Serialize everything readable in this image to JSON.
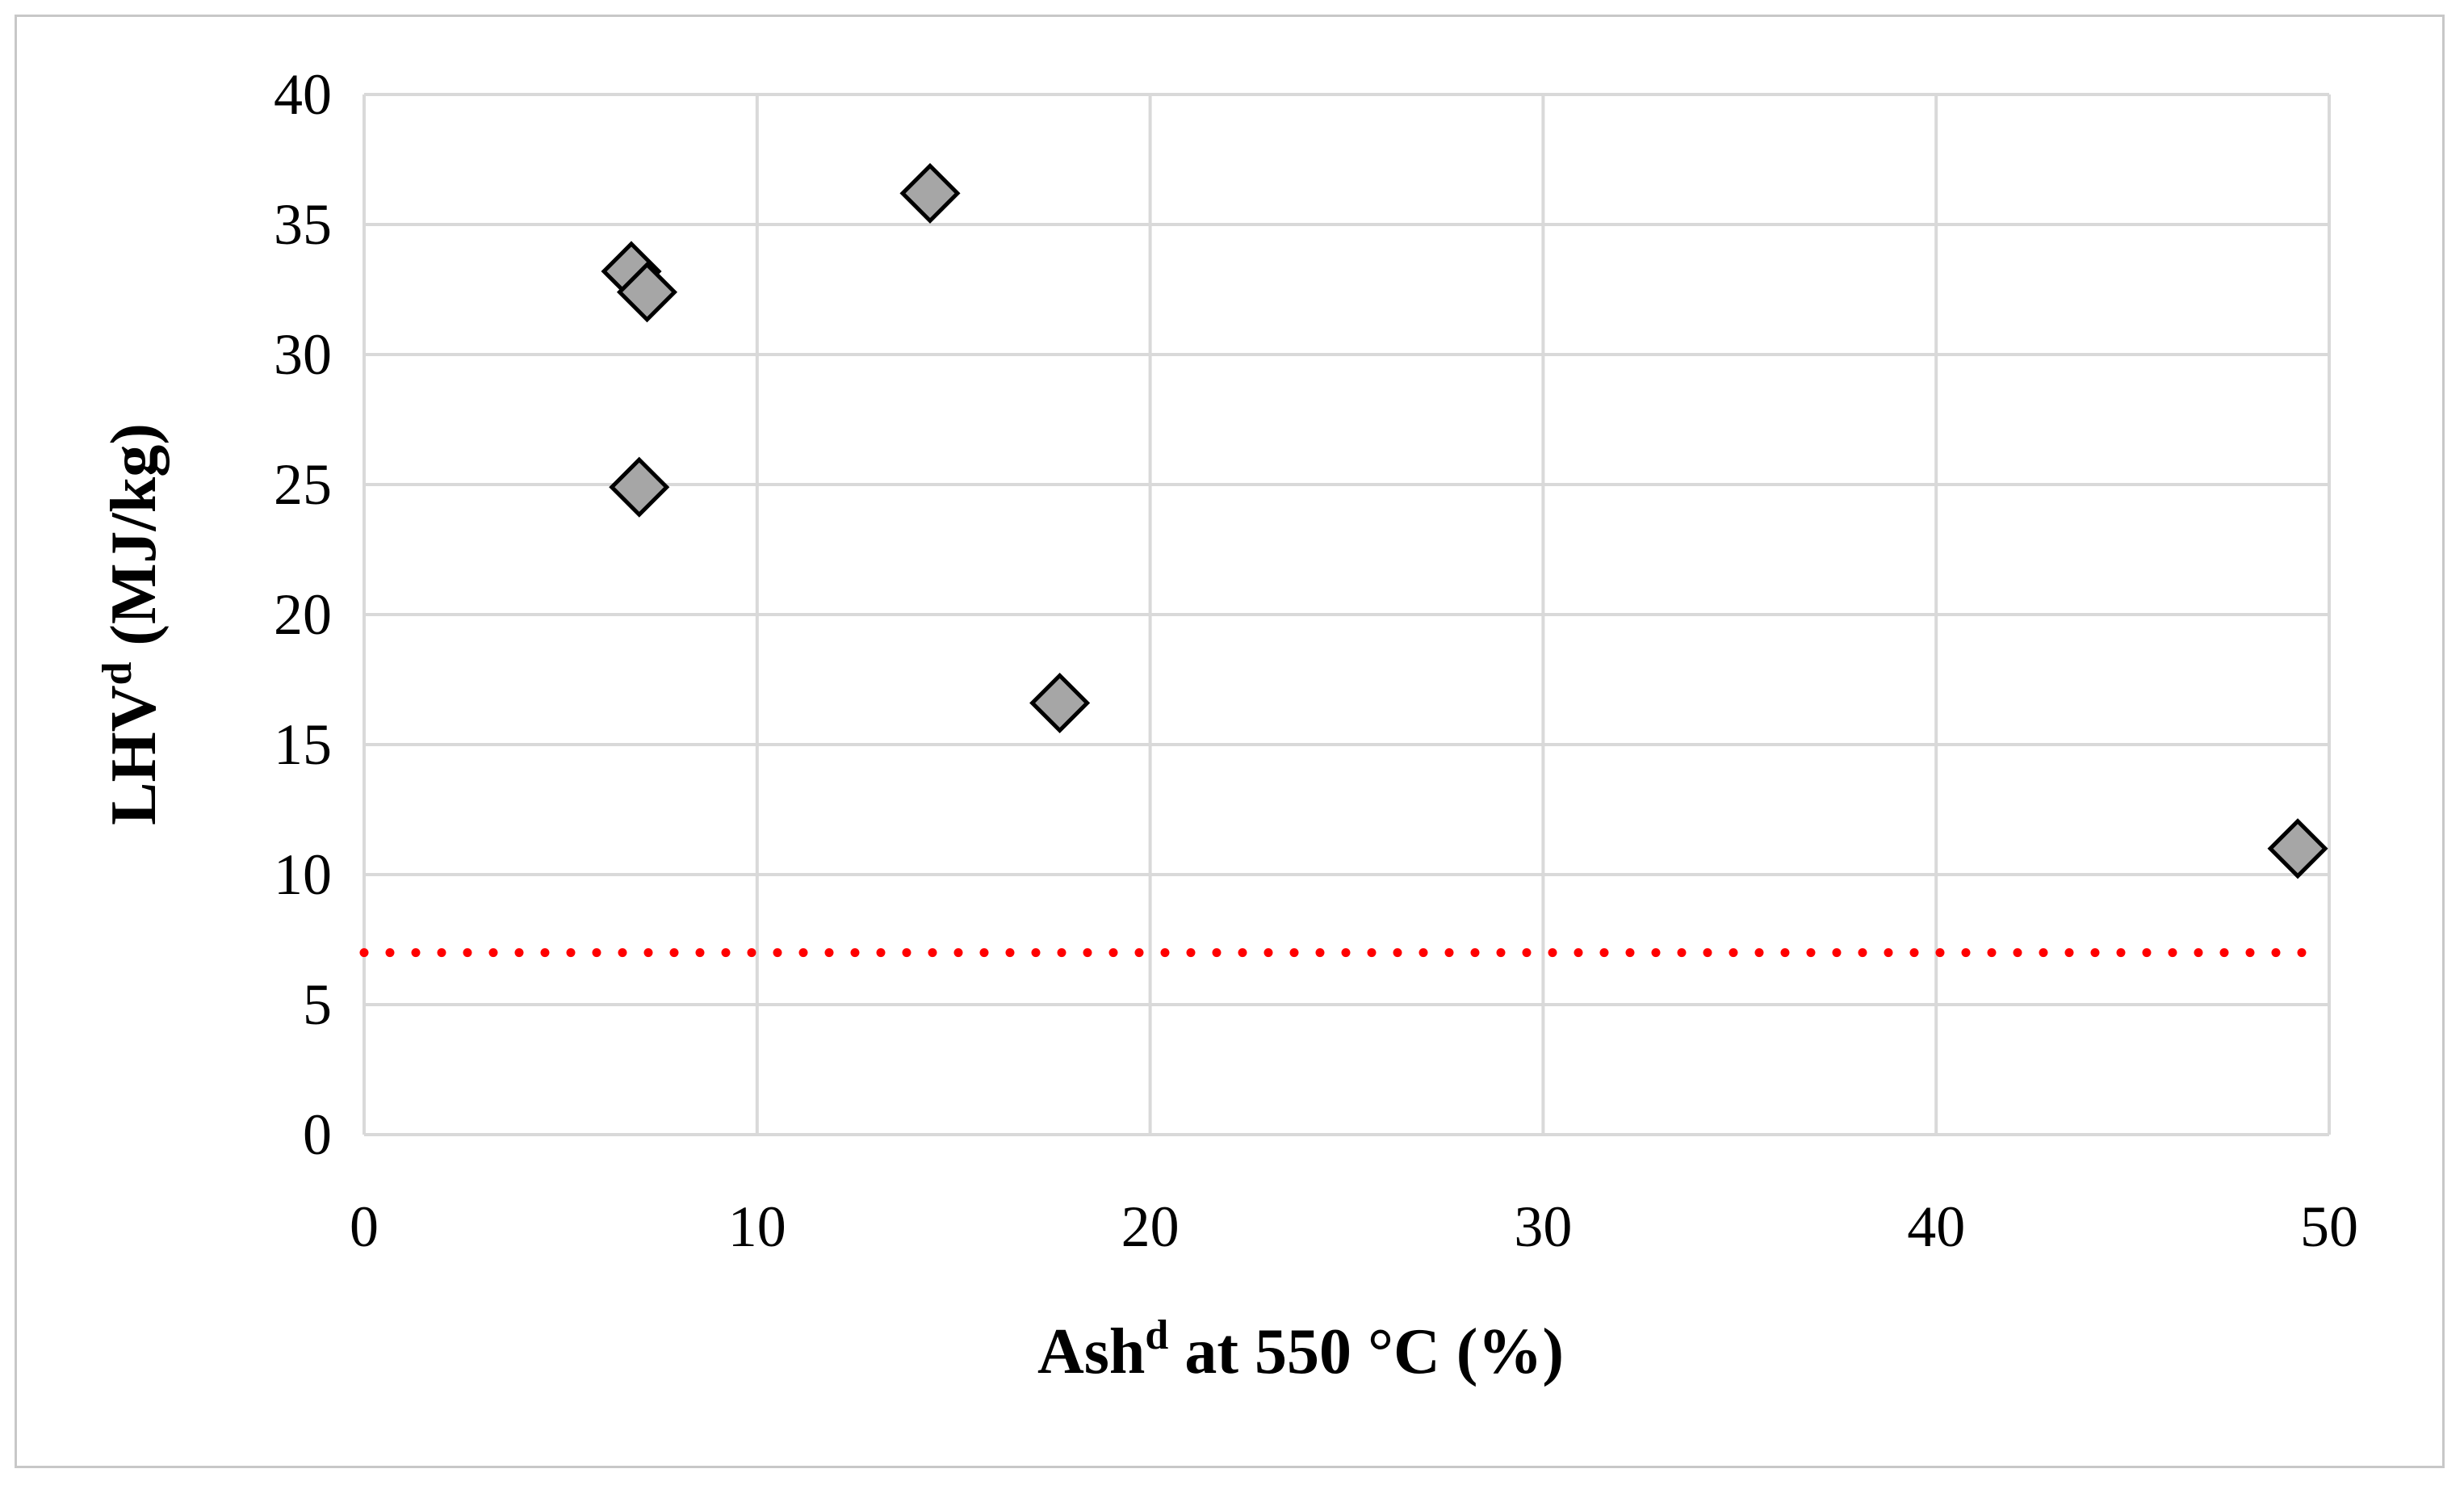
{
  "chart_data": {
    "type": "scatter",
    "xlabel": {
      "base": "Ash",
      "superscript": "d",
      "rest": " at 550 °C (%)"
    },
    "ylabel": {
      "base": "LHV",
      "superscript": "d",
      "rest": " (MJ/kg)"
    },
    "xlim": [
      0,
      50
    ],
    "ylim": [
      0,
      40
    ],
    "x_ticks": [
      0,
      10,
      20,
      30,
      40,
      50
    ],
    "y_ticks": [
      0,
      5,
      10,
      15,
      20,
      25,
      30,
      35,
      40
    ],
    "grid": true,
    "series": [
      {
        "marker": "diamond",
        "color": "#a6a6a6",
        "points": [
          {
            "x": 6.8,
            "y": 33.2
          },
          {
            "x": 7.2,
            "y": 32.4
          },
          {
            "x": 7.0,
            "y": 24.9
          },
          {
            "x": 14.4,
            "y": 36.2
          },
          {
            "x": 17.7,
            "y": 16.6
          },
          {
            "x": 49.2,
            "y": 11.0
          }
        ]
      }
    ],
    "reference_line": {
      "y": 7,
      "style": "dotted",
      "color": "#ff0000",
      "x_range": [
        0,
        49.6
      ]
    }
  }
}
